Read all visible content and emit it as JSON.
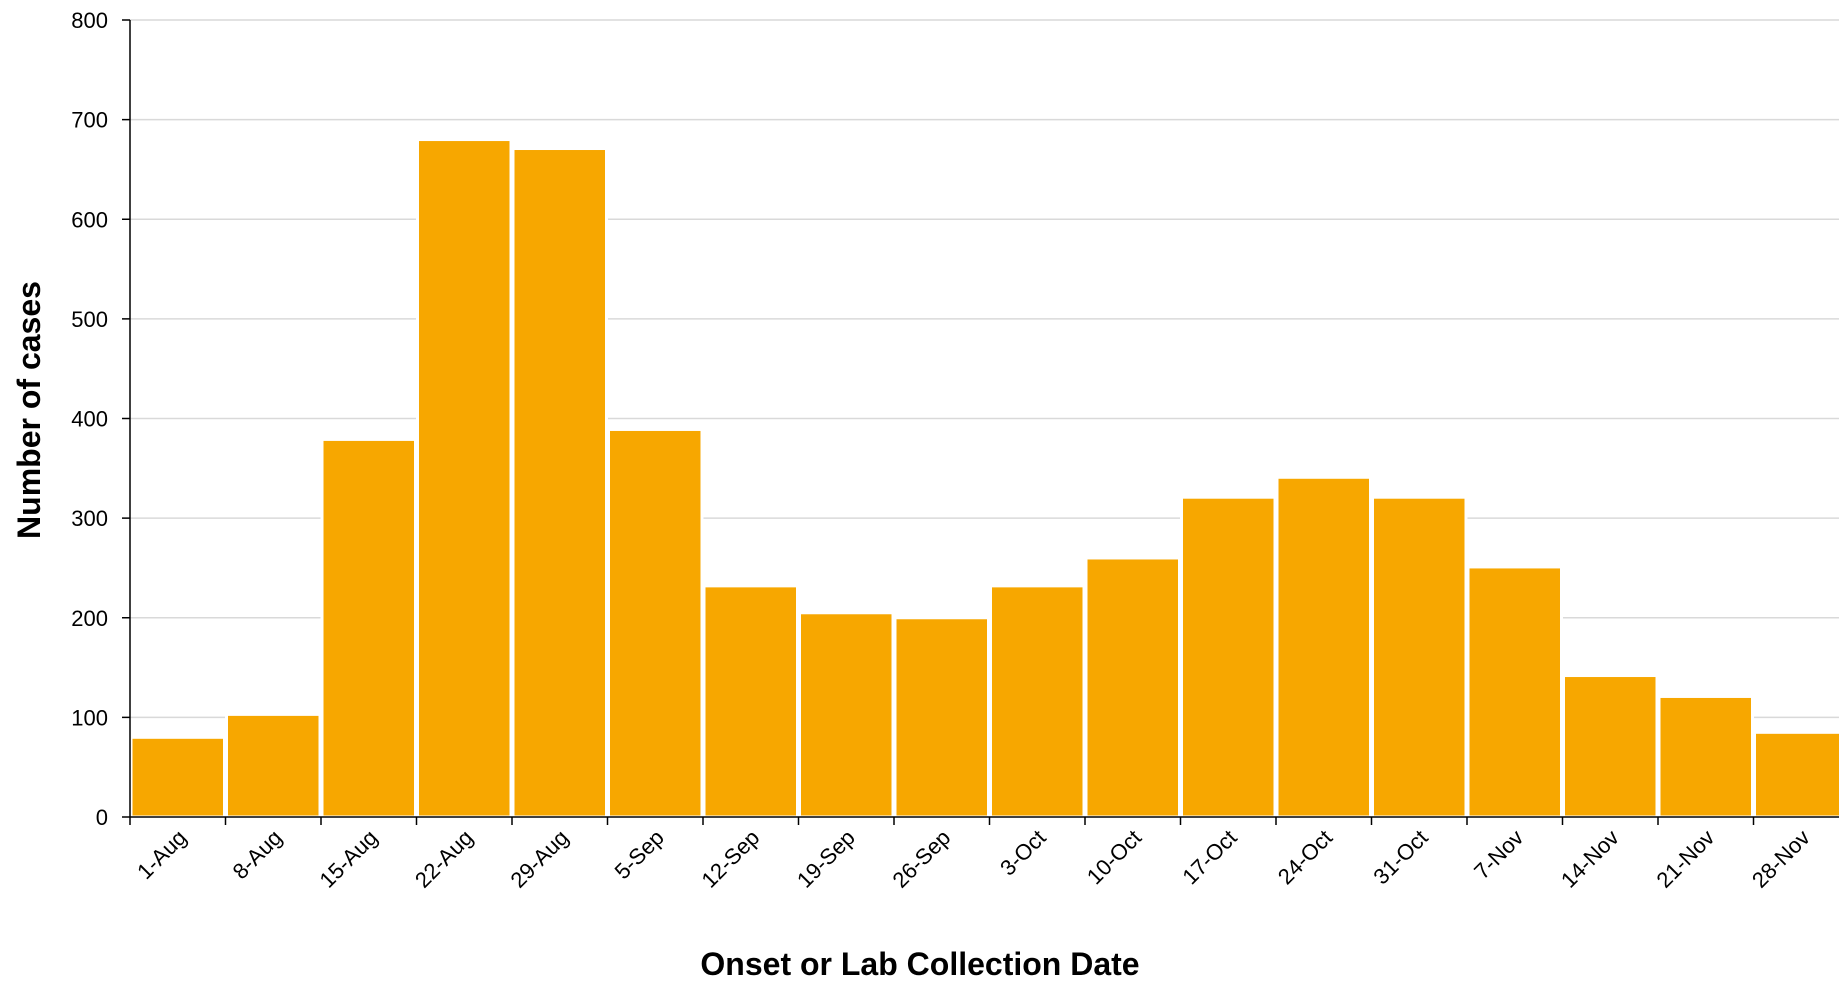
{
  "chart_data": {
    "type": "bar",
    "title": "",
    "xlabel": "Onset or Lab Collection Date",
    "ylabel": "Number of cases",
    "ylim": [
      0,
      800
    ],
    "yticks": [
      0,
      100,
      200,
      300,
      400,
      500,
      600,
      700,
      800
    ],
    "grid": true,
    "bar_color": "#F7A700",
    "categories": [
      "1-Aug",
      "8-Aug",
      "15-Aug",
      "22-Aug",
      "29-Aug",
      "5-Sep",
      "12-Sep",
      "19-Sep",
      "26-Sep",
      "3-Oct",
      "10-Oct",
      "17-Oct",
      "24-Oct",
      "31-Oct",
      "7-Nov",
      "14-Nov",
      "21-Nov",
      "28-Nov"
    ],
    "values": [
      80,
      103,
      379,
      680,
      671,
      389,
      232,
      205,
      200,
      232,
      260,
      321,
      341,
      321,
      251,
      142,
      121,
      85
    ]
  }
}
